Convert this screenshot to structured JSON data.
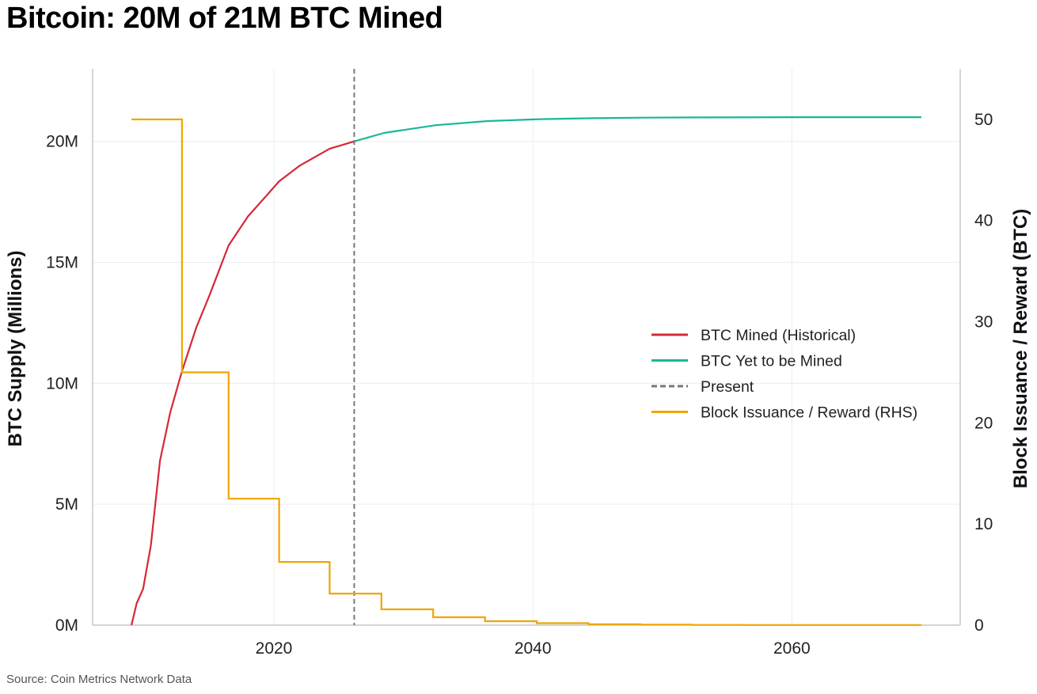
{
  "title": "Bitcoin: 20M of 21M BTC Mined",
  "source": "Source: Coin Metrics Network Data",
  "colors": {
    "mined": "#d62839",
    "future": "#17b897",
    "present": "#777777",
    "reward": "#f0a500",
    "grid": "#ececec",
    "axis": "#444444"
  },
  "chart_data": {
    "type": "line",
    "title": "Bitcoin: 20M of 21M BTC Mined",
    "xlabel": "",
    "ylabel": "BTC Supply (Millions)",
    "y2label": "Block Issuance / Reward (BTC)",
    "xlim": [
      2006,
      2073
    ],
    "ylim": [
      0,
      23
    ],
    "y2lim": [
      0,
      55
    ],
    "xticks": [
      2020,
      2040,
      2060
    ],
    "yticks": [
      {
        "value": 0,
        "label": "0M"
      },
      {
        "value": 5,
        "label": "5M"
      },
      {
        "value": 10,
        "label": "10M"
      },
      {
        "value": 15,
        "label": "15M"
      },
      {
        "value": 20,
        "label": "20M"
      }
    ],
    "y2ticks": [
      0,
      10,
      20,
      30,
      40,
      50
    ],
    "grid": true,
    "legend_position": "center-right",
    "present_x": 2026.2,
    "series": [
      {
        "name": "BTC Mined (Historical)",
        "axis": "left",
        "style": "line",
        "x": [
          2009.0,
          2009.4,
          2009.9,
          2010.5,
          2011.2,
          2012.0,
          2012.9,
          2014.0,
          2015.0,
          2016.5,
          2018.0,
          2019.5,
          2020.4,
          2022.0,
          2024.3,
          2026.2
        ],
        "y": [
          0.0,
          0.9,
          1.5,
          3.3,
          6.8,
          8.8,
          10.5,
          12.3,
          13.6,
          15.7,
          16.9,
          17.8,
          18.35,
          19.0,
          19.7,
          20.0
        ]
      },
      {
        "name": "BTC Yet to be Mined",
        "axis": "left",
        "style": "line",
        "x": [
          2026.2,
          2028.5,
          2032.5,
          2036.5,
          2040.5,
          2044.5,
          2048.5,
          2052.5,
          2060.0,
          2070.0
        ],
        "y": [
          20.0,
          20.35,
          20.67,
          20.84,
          20.92,
          20.96,
          20.98,
          20.99,
          21.0,
          21.0
        ]
      },
      {
        "name": "Present",
        "axis": "left",
        "style": "dashed-vertical"
      },
      {
        "name": "Block Issuance / Reward (RHS)",
        "axis": "right",
        "style": "step",
        "x": [
          2009.0,
          2012.9,
          2016.5,
          2020.4,
          2024.3,
          2028.3,
          2032.3,
          2036.3,
          2040.3,
          2044.3,
          2048.3,
          2052.3,
          2056.3,
          2070.0
        ],
        "y": [
          50,
          25,
          12.5,
          6.25,
          3.125,
          1.5625,
          0.78125,
          0.390625,
          0.1953125,
          0.09765625,
          0.048828125,
          0.0244140625,
          0.01220703125,
          0.01220703125
        ]
      }
    ]
  }
}
